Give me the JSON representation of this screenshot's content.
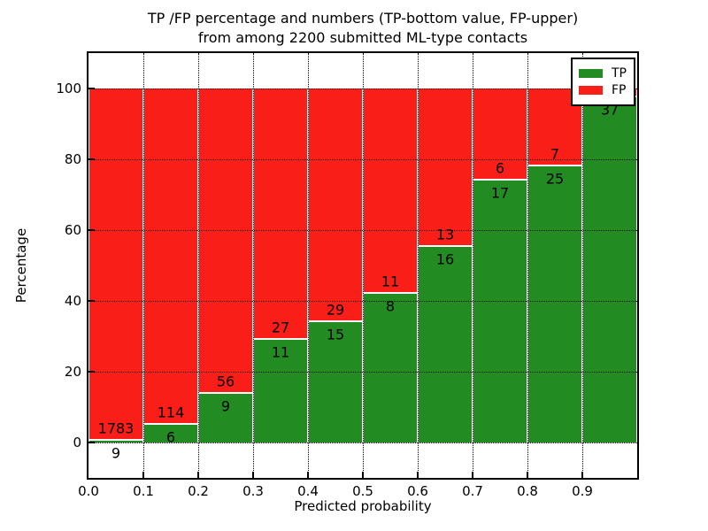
{
  "chart_data": {
    "type": "bar",
    "stacked": true,
    "title": "TP /FP percentage and numbers (TP-bottom value, FP-upper)\nfrom among 2200 submitted ML-type contacts",
    "title_line1": "TP /FP percentage and numbers (TP-bottom value, FP-upper)",
    "title_line2": "from among 2200 submitted ML-type contacts",
    "xlabel": "Predicted probability",
    "ylabel": "Percentage",
    "xlim": [
      0.0,
      1.0
    ],
    "ylim": [
      -10,
      110
    ],
    "xticks": [
      "0.0",
      "0.1",
      "0.2",
      "0.3",
      "0.4",
      "0.5",
      "0.6",
      "0.7",
      "0.8",
      "0.9"
    ],
    "yticks": [
      0,
      20,
      40,
      60,
      80,
      100
    ],
    "grid": true,
    "colors": {
      "tp": "#228b22",
      "fp": "#fa1e19"
    },
    "legend": {
      "position": "upper right",
      "entries": [
        {
          "label": "TP",
          "color": "#228b22"
        },
        {
          "label": "FP",
          "color": "#fa1e19"
        }
      ]
    },
    "bin_width": 0.1,
    "bins": [
      {
        "range": "0.0-0.1",
        "tp_label": "9",
        "fp_label": "1783",
        "tp_pct": 0.5,
        "fp_pct": 99.5
      },
      {
        "range": "0.1-0.2",
        "tp_label": "6",
        "fp_label": "114",
        "tp_pct": 5.0,
        "fp_pct": 95.0
      },
      {
        "range": "0.2-0.3",
        "tp_label": "9",
        "fp_label": "56",
        "tp_pct": 13.8,
        "fp_pct": 86.2
      },
      {
        "range": "0.3-0.4",
        "tp_label": "11",
        "fp_label": "27",
        "tp_pct": 28.9,
        "fp_pct": 71.1
      },
      {
        "range": "0.4-0.5",
        "tp_label": "15",
        "fp_label": "29",
        "tp_pct": 34.1,
        "fp_pct": 65.9
      },
      {
        "range": "0.5-0.6",
        "tp_label": "8",
        "fp_label": "11",
        "tp_pct": 42.1,
        "fp_pct": 57.9
      },
      {
        "range": "0.6-0.7",
        "tp_label": "16",
        "fp_label": "13",
        "tp_pct": 55.2,
        "fp_pct": 44.8
      },
      {
        "range": "0.7-0.8",
        "tp_label": "17",
        "fp_label": "6",
        "tp_pct": 73.9,
        "fp_pct": 26.1
      },
      {
        "range": "0.8-0.9",
        "tp_label": "25",
        "fp_label": "7",
        "tp_pct": 78.1,
        "fp_pct": 21.9
      },
      {
        "range": "0.9-1.0",
        "tp_label": "37",
        "fp_label": "",
        "tp_pct": 97.4,
        "fp_pct": 2.6
      }
    ]
  }
}
